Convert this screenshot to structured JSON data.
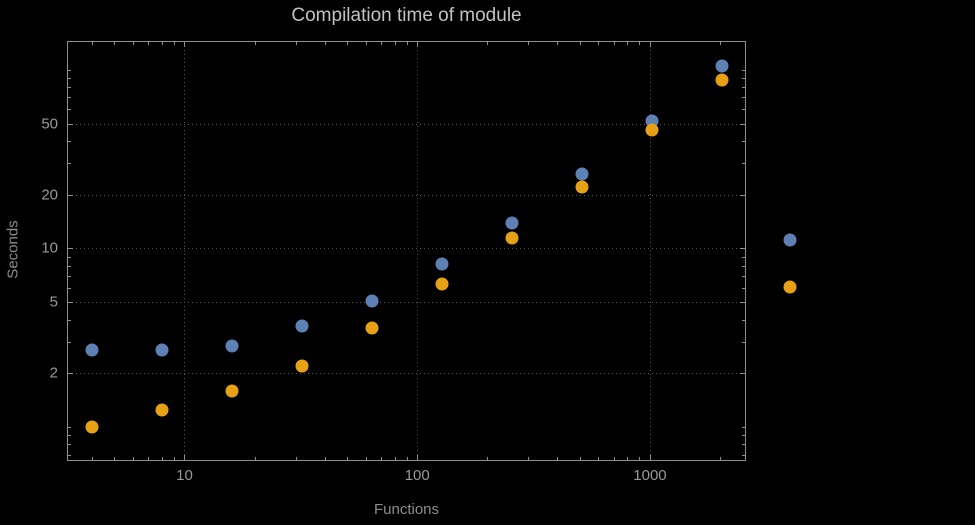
{
  "chart_data": {
    "type": "scatter",
    "title": "Compilation time of module",
    "xlabel": "Functions",
    "ylabel": "Seconds",
    "xscale": "log",
    "yscale": "log",
    "xlim": [
      3.16,
      2560
    ],
    "ylim": [
      0.655,
      143
    ],
    "grid": true,
    "legend_position": "right",
    "x": [
      4,
      8,
      16,
      32,
      64,
      128,
      256,
      512,
      1024,
      2048
    ],
    "series": [
      {
        "name": "",
        "color": "#5e81b5",
        "values": [
          2.7,
          2.7,
          2.85,
          3.7,
          5.1,
          8.2,
          13.8,
          26,
          52,
          105
        ]
      },
      {
        "name": "",
        "color": "#e6a117",
        "values": [
          1.0,
          1.25,
          1.6,
          2.2,
          3.6,
          6.3,
          11.5,
          22,
          46,
          88
        ]
      }
    ],
    "x_ticks": [
      {
        "value": 10,
        "label": "10"
      },
      {
        "value": 100,
        "label": "100"
      },
      {
        "value": 1000,
        "label": "1000"
      }
    ],
    "y_ticks": [
      {
        "value": 2,
        "label": "2"
      },
      {
        "value": 5,
        "label": "5"
      },
      {
        "value": 10,
        "label": "10"
      },
      {
        "value": 20,
        "label": "20"
      },
      {
        "value": 50,
        "label": "50"
      }
    ],
    "colors": {
      "background": "#000000",
      "frame": "#8f8f8f",
      "grid": "#555555",
      "title_text": "#c2c2c2",
      "tick_text": "#999999",
      "label_text": "#8c8c8c",
      "series1": "#5e81b5",
      "series2": "#e6a117"
    }
  }
}
